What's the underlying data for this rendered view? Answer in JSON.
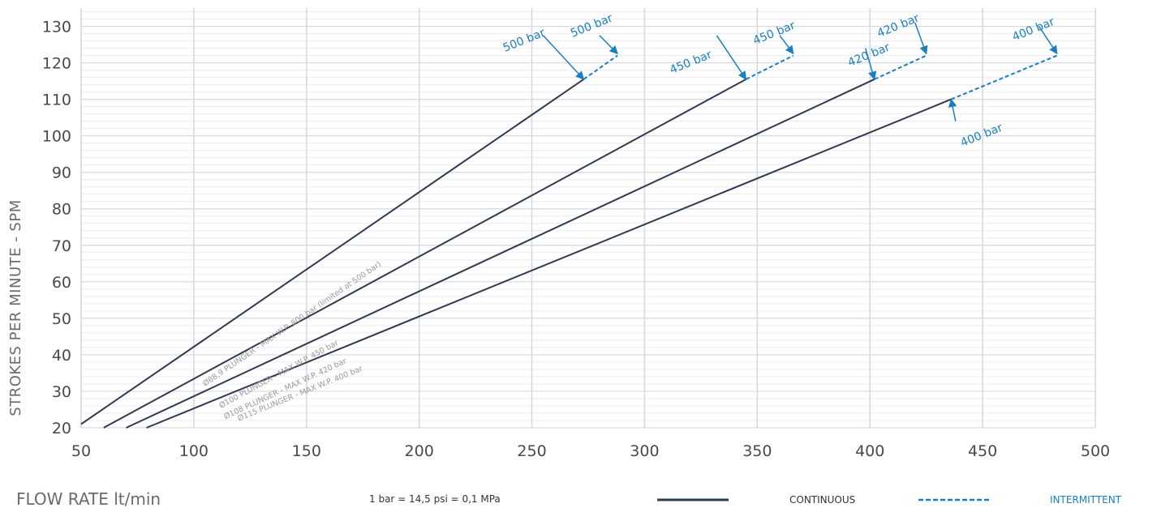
{
  "chart_data": {
    "type": "line",
    "xlabel": "FLOW RATE lt/min",
    "ylabel": "STROKES PER MINUTE - SPM",
    "xlim": [
      50,
      500
    ],
    "ylim": [
      20,
      135
    ],
    "xticks": [
      50,
      100,
      150,
      200,
      250,
      300,
      350,
      400,
      450,
      500
    ],
    "yticks": [
      20,
      30,
      40,
      50,
      60,
      70,
      80,
      90,
      100,
      110,
      120,
      130
    ],
    "grid": true,
    "note": "1 bar = 14,5 psi = 0,1 MPa",
    "legend": {
      "continuous": "CONTINUOUS",
      "intermittent": "INTERMITTENT",
      "continuous_color": "#2f3a4f",
      "intermittent_color": "#1a7fc1"
    },
    "series": [
      {
        "name": "Ø88,9 PLUNGER - MAX W.P. 800 bar (limited at 500 bar)",
        "continuous": [
          [
            50,
            21
          ],
          [
            273,
            115.5
          ]
        ],
        "intermittent": [
          [
            273,
            115.5
          ],
          [
            288,
            122
          ]
        ],
        "continuous_label": "500 bar",
        "intermittent_label": "500 bar"
      },
      {
        "name": "Ø100 PLUNGER - MAX W.P. 450 bar",
        "continuous": [
          [
            60,
            20
          ],
          [
            345,
            115.5
          ]
        ],
        "intermittent": [
          [
            345,
            115.5
          ],
          [
            366,
            122
          ]
        ],
        "continuous_label": "450 bar",
        "intermittent_label": "450 bar"
      },
      {
        "name": "Ø108 PLUNGER - MAX W.P. 420 bar",
        "continuous": [
          [
            70,
            20
          ],
          [
            402,
            115.5
          ]
        ],
        "intermittent": [
          [
            402,
            115.5
          ],
          [
            425,
            122
          ]
        ],
        "continuous_label": "420 bar",
        "intermittent_label": "420 bar"
      },
      {
        "name": "Ø115 PLUNGER - MAX W.P. 400 bar",
        "continuous": [
          [
            79,
            20
          ],
          [
            436,
            110
          ]
        ],
        "intermittent": [
          [
            436,
            110
          ],
          [
            483,
            122
          ]
        ],
        "continuous_label": "400 bar",
        "intermittent_label": "400 bar"
      }
    ]
  }
}
